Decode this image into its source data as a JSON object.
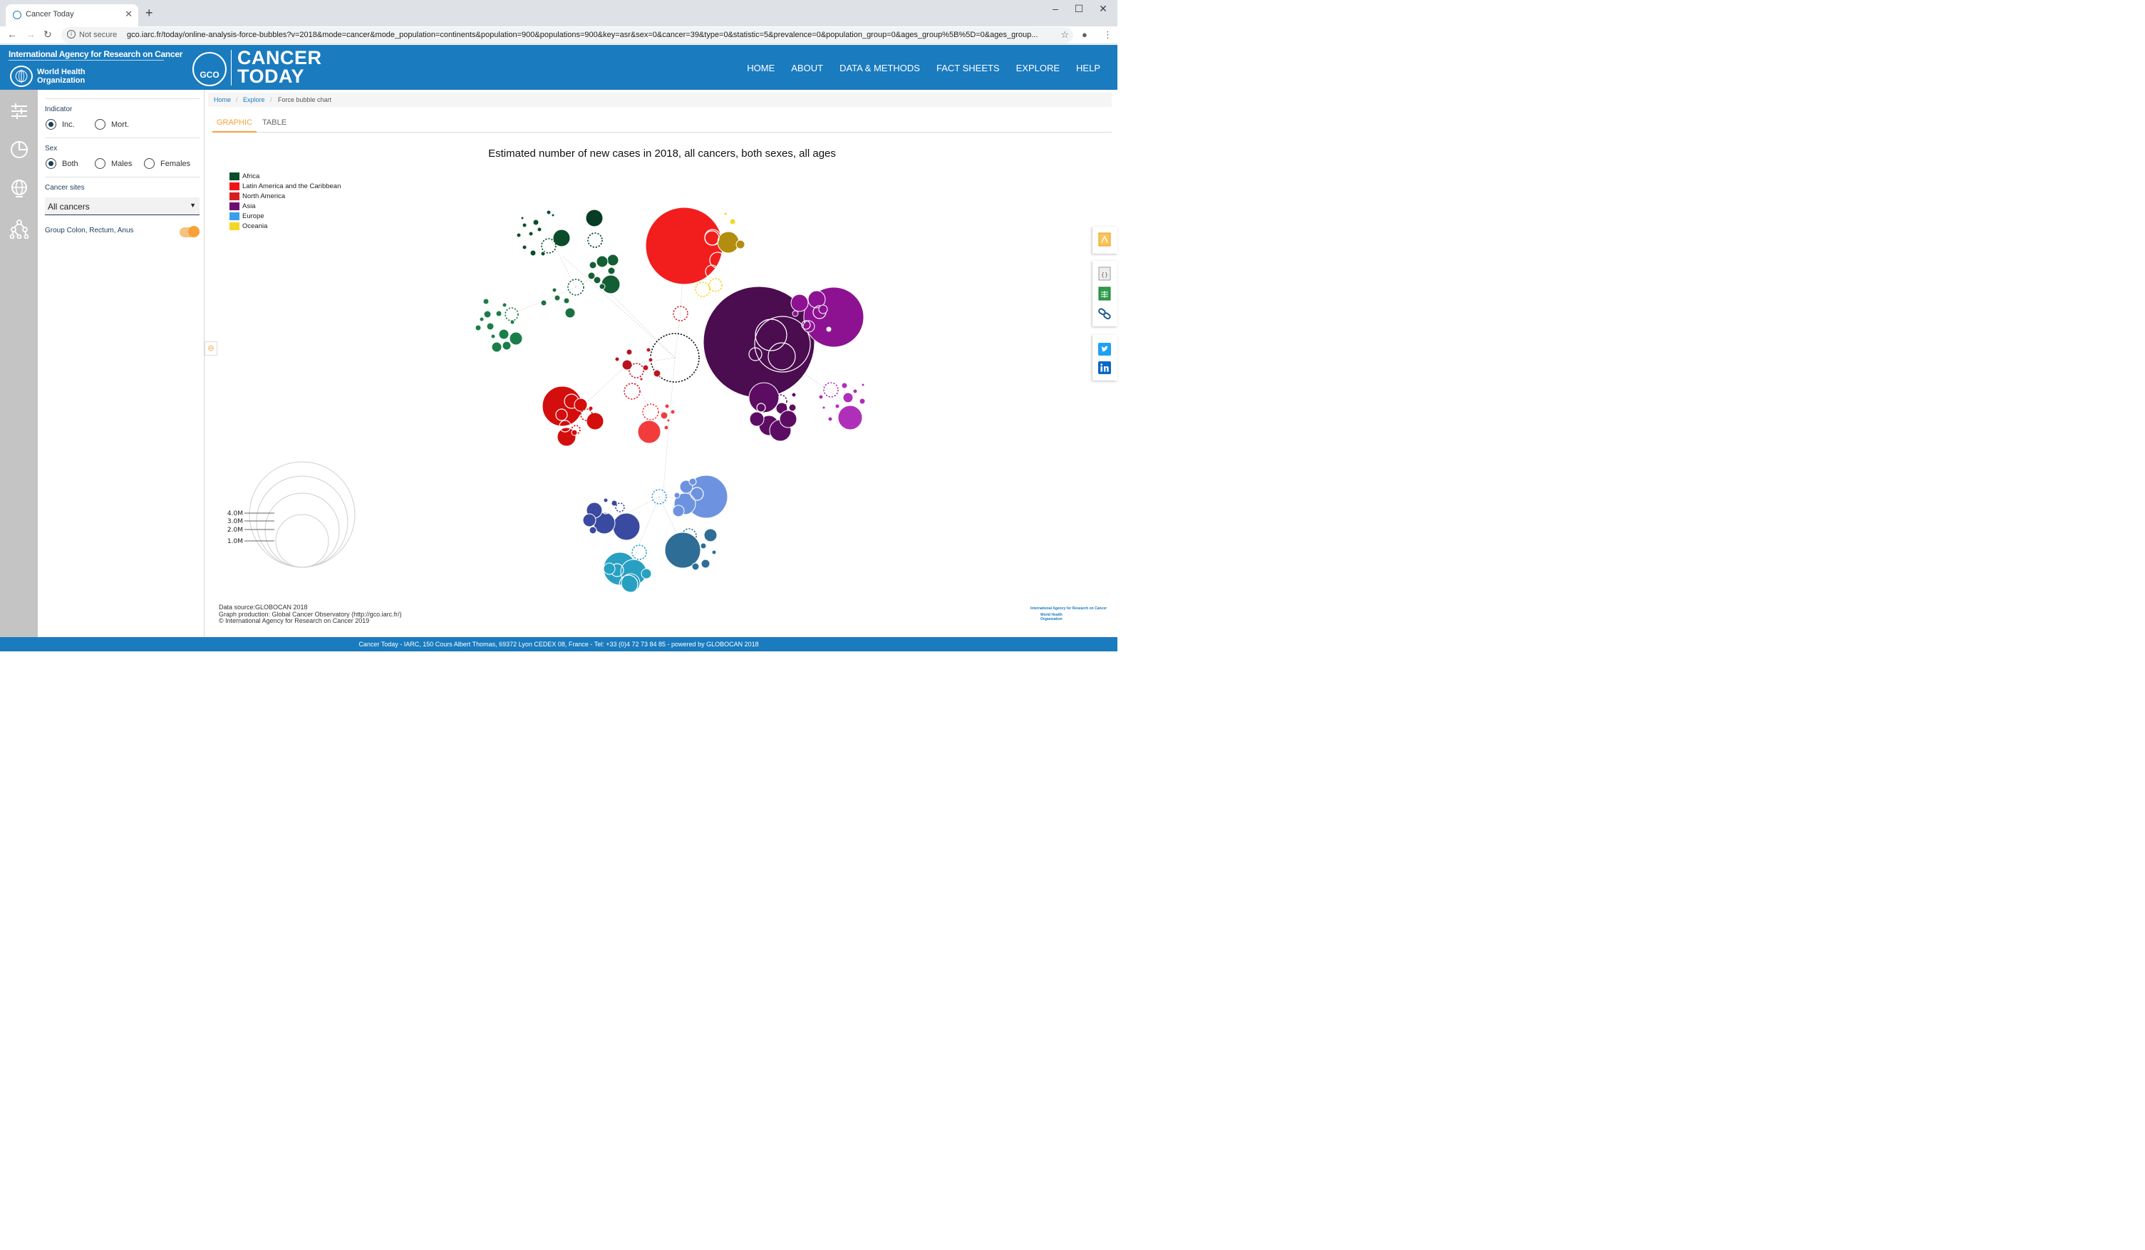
{
  "browser": {
    "tab_title": "Cancer Today",
    "security_label": "Not secure",
    "url": "gco.iarc.fr/today/online-analysis-force-bubbles?v=2018&mode=cancer&mode_population=continents&population=900&populations=900&key=asr&sex=0&cancer=39&type=0&statistic=5&prevalence=0&population_group=0&ages_group%5B%5D=0&ages_group..."
  },
  "header": {
    "iarc_name": "International Agency for Research on Cancer",
    "who_name_line1": "World Health",
    "who_name_line2": "Organization",
    "gco_badge": "GCO",
    "brand_line1": "CANCER",
    "brand_line2": "TODAY",
    "nav": [
      "HOME",
      "ABOUT",
      "DATA & METHODS",
      "FACT SHEETS",
      "EXPLORE",
      "HELP"
    ],
    "color": "#1a7bbf"
  },
  "panel": {
    "indicator_label": "Indicator",
    "indicator_options": [
      "Inc.",
      "Mort."
    ],
    "indicator_selected": "Inc.",
    "sex_label": "Sex",
    "sex_options": [
      "Both",
      "Males",
      "Females"
    ],
    "sex_selected": "Both",
    "cancer_sites_label": "Cancer sites",
    "cancer_sites_value": "All cancers",
    "group_label": "Group Colon, Rectum, Anus",
    "group_enabled": true
  },
  "breadcrumb": [
    "Home",
    "Explore",
    "Force bubble chart"
  ],
  "tabs": [
    "GRAPHIC",
    "TABLE"
  ],
  "active_tab": "GRAPHIC",
  "chart_data": {
    "type": "scatter",
    "title": "Estimated number of new cases in 2018, all cancers, both sexes, all ages",
    "legend": [
      {
        "name": "Africa",
        "color": "#0b4d2b"
      },
      {
        "name": "Latin America and the Caribbean",
        "color": "#f21414"
      },
      {
        "name": "North America",
        "color": "#d62020"
      },
      {
        "name": "Asia",
        "color": "#6b0f74"
      },
      {
        "name": "Europe",
        "color": "#3a9fe8"
      },
      {
        "name": "Oceania",
        "color": "#f4d626"
      }
    ],
    "legend_placement": "top-left",
    "size_scale": {
      "labels": [
        "4.0M",
        "3.0M",
        "2.0M",
        "1.0M"
      ],
      "values": [
        4000000,
        3000000,
        2000000,
        1000000
      ]
    }
  },
  "source": {
    "line1": "Data source:GLOBOCAN 2018",
    "line2": "Graph production: Global Cancer Observatory (http://gco.iarc.fr/)",
    "line3": "© International Agency for Research on Cancer 2019"
  },
  "mini_logo": {
    "line1": "International Agency for Research on Cancer",
    "line2": "World Health",
    "line3": "Organization"
  },
  "right_tools": [
    "svg-export-icon",
    "json-export-icon",
    "csv-export-icon",
    "link-icon",
    "twitter-icon",
    "linkedin-icon"
  ],
  "footer": "Cancer Today - IARC, 150 Cours Albert Thomas, 69372 Lyon CEDEX 08, France - Tel: +33 (0)4 72 73 84 85 - powered by GLOBOCAN 2018"
}
